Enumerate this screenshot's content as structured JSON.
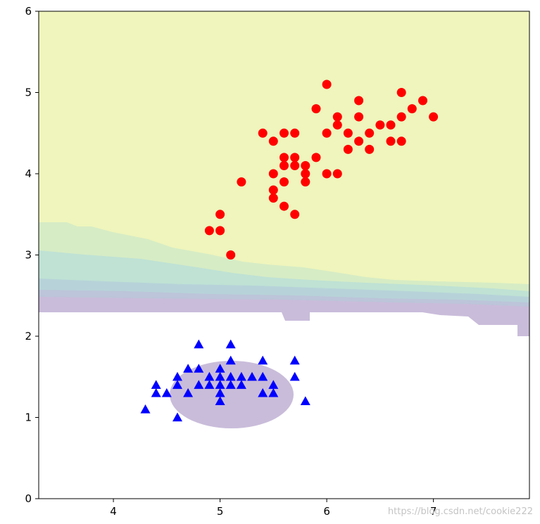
{
  "chart_data": {
    "type": "scatter",
    "title": "",
    "xlabel": "",
    "ylabel": "",
    "xlim": [
      3.3,
      7.9
    ],
    "ylim": [
      0,
      6
    ],
    "x_ticks": [
      4,
      5,
      6,
      7
    ],
    "y_ticks": [
      0,
      1,
      2,
      3,
      4,
      5,
      6
    ],
    "grid": false,
    "legend": "none",
    "series": [
      {
        "marker": "circle",
        "color": "#ff0000",
        "points": [
          [
            4.9,
            3.3
          ],
          [
            5.0,
            3.3
          ],
          [
            5.0,
            3.5
          ],
          [
            5.1,
            3.0
          ],
          [
            5.2,
            3.9
          ],
          [
            5.4,
            4.5
          ],
          [
            5.5,
            4.4
          ],
          [
            5.5,
            4.0
          ],
          [
            5.5,
            3.8
          ],
          [
            5.5,
            3.7
          ],
          [
            5.6,
            4.5
          ],
          [
            5.6,
            4.2
          ],
          [
            5.6,
            4.1
          ],
          [
            5.6,
            3.9
          ],
          [
            5.6,
            3.6
          ],
          [
            5.7,
            4.5
          ],
          [
            5.7,
            4.2
          ],
          [
            5.7,
            4.1
          ],
          [
            5.7,
            3.5
          ],
          [
            5.8,
            4.1
          ],
          [
            5.8,
            4.0
          ],
          [
            5.8,
            3.9
          ],
          [
            5.9,
            4.8
          ],
          [
            5.9,
            4.2
          ],
          [
            6.0,
            5.1
          ],
          [
            6.0,
            4.5
          ],
          [
            6.0,
            4.0
          ],
          [
            6.1,
            4.7
          ],
          [
            6.1,
            4.6
          ],
          [
            6.1,
            4.0
          ],
          [
            6.2,
            4.5
          ],
          [
            6.2,
            4.3
          ],
          [
            6.3,
            4.9
          ],
          [
            6.3,
            4.7
          ],
          [
            6.3,
            4.4
          ],
          [
            6.4,
            4.5
          ],
          [
            6.4,
            4.3
          ],
          [
            6.5,
            4.6
          ],
          [
            6.6,
            4.6
          ],
          [
            6.6,
            4.4
          ],
          [
            6.7,
            5.0
          ],
          [
            6.7,
            4.7
          ],
          [
            6.7,
            4.4
          ],
          [
            6.8,
            4.8
          ],
          [
            6.9,
            4.9
          ],
          [
            7.0,
            4.7
          ]
        ]
      },
      {
        "marker": "triangle",
        "color": "#0000ff",
        "points": [
          [
            4.3,
            1.1
          ],
          [
            4.4,
            1.3
          ],
          [
            4.4,
            1.4
          ],
          [
            4.5,
            1.3
          ],
          [
            4.6,
            1.0
          ],
          [
            4.6,
            1.4
          ],
          [
            4.6,
            1.5
          ],
          [
            4.7,
            1.3
          ],
          [
            4.7,
            1.6
          ],
          [
            4.8,
            1.4
          ],
          [
            4.8,
            1.6
          ],
          [
            4.8,
            1.9
          ],
          [
            4.9,
            1.4
          ],
          [
            4.9,
            1.5
          ],
          [
            5.0,
            1.2
          ],
          [
            5.0,
            1.3
          ],
          [
            5.0,
            1.4
          ],
          [
            5.0,
            1.5
          ],
          [
            5.0,
            1.6
          ],
          [
            5.1,
            1.4
          ],
          [
            5.1,
            1.5
          ],
          [
            5.1,
            1.7
          ],
          [
            5.1,
            1.9
          ],
          [
            5.2,
            1.4
          ],
          [
            5.2,
            1.5
          ],
          [
            5.3,
            1.5
          ],
          [
            5.4,
            1.3
          ],
          [
            5.4,
            1.5
          ],
          [
            5.4,
            1.7
          ],
          [
            5.5,
            1.3
          ],
          [
            5.5,
            1.4
          ],
          [
            5.7,
            1.5
          ],
          [
            5.7,
            1.7
          ],
          [
            5.8,
            1.2
          ]
        ]
      }
    ],
    "contour_colors": {
      "yellow": "#eff5bc",
      "light_green": "#d6ecc5",
      "teal": "#bfe2d4",
      "blue_teal": "#b7d3d9",
      "grey_blue": "#bcc5d9",
      "purple": "#c9bcda"
    },
    "watermark": "https://blog.csdn.net/cookie222"
  }
}
